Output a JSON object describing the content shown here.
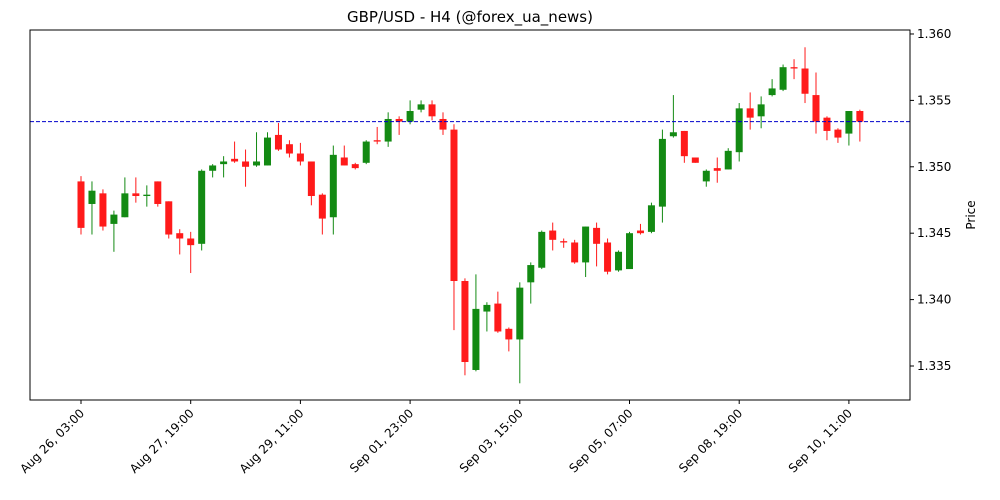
{
  "chart_data": {
    "type": "candlestick",
    "title": "GBP/USD - H4 (@forex_ua_news)",
    "y_label": "Price",
    "categories": [
      "Aug 26, 03:00",
      null,
      null,
      null,
      null,
      null,
      null,
      null,
      null,
      null,
      "Aug 27, 19:00",
      null,
      null,
      null,
      null,
      null,
      null,
      null,
      null,
      null,
      "Aug 29, 11:00",
      null,
      null,
      null,
      null,
      null,
      null,
      null,
      null,
      null,
      "Sep 01, 23:00",
      null,
      null,
      null,
      null,
      null,
      null,
      null,
      null,
      null,
      "Sep 03, 15:00",
      null,
      null,
      null,
      null,
      null,
      null,
      null,
      null,
      null,
      "Sep 05, 07:00",
      null,
      null,
      null,
      null,
      null,
      null,
      null,
      null,
      null,
      "Sep 08, 19:00",
      null,
      null,
      null,
      null,
      null,
      null,
      null,
      null,
      null,
      "Sep 10, 11:00",
      null
    ],
    "open": [
      1.3489,
      1.3472,
      1.348,
      1.3457,
      1.3462,
      1.348,
      1.3478,
      1.3489,
      1.3474,
      1.345,
      1.3446,
      1.3442,
      1.3497,
      1.3502,
      1.3506,
      1.3504,
      1.3501,
      1.3501,
      1.3524,
      1.3517,
      1.351,
      1.3504,
      1.3479,
      1.3462,
      1.3507,
      1.3502,
      1.3503,
      1.352,
      1.3519,
      1.3536,
      1.3534,
      1.3543,
      1.3547,
      1.3536,
      1.3528,
      1.3414,
      1.3347,
      1.3391,
      1.3397,
      1.3378,
      1.337,
      1.3413,
      1.3424,
      1.3452,
      1.3444,
      1.3443,
      1.3428,
      1.3454,
      1.3443,
      1.3422,
      1.3423,
      1.3452,
      1.3451,
      1.347,
      1.3523,
      1.3527,
      1.3507,
      1.3489,
      1.3499,
      1.3498,
      1.3511,
      1.3544,
      1.3538,
      1.3554,
      1.3558,
      1.3575,
      1.3574,
      1.3554,
      1.3537,
      1.3528,
      1.3525,
      1.3542
    ],
    "high": [
      1.3493,
      1.3489,
      1.3483,
      1.3467,
      1.3492,
      1.3492,
      1.3486,
      1.3489,
      1.3474,
      1.3453,
      1.3451,
      1.3498,
      1.3502,
      1.3508,
      1.3519,
      1.3513,
      1.3526,
      1.3526,
      1.3533,
      1.352,
      1.3518,
      1.3504,
      1.348,
      1.3516,
      1.3516,
      1.3503,
      1.352,
      1.353,
      1.3541,
      1.3538,
      1.355,
      1.355,
      1.355,
      1.3541,
      1.3532,
      1.3416,
      1.3419,
      1.3398,
      1.3406,
      1.3379,
      1.3413,
      1.3428,
      1.3452,
      1.3458,
      1.3446,
      1.3445,
      1.3455,
      1.3458,
      1.3446,
      1.3437,
      1.3451,
      1.3457,
      1.3473,
      1.3528,
      1.3554,
      1.3527,
      1.3507,
      1.3498,
      1.3507,
      1.3514,
      1.3548,
      1.3556,
      1.3553,
      1.3566,
      1.3577,
      1.3581,
      1.359,
      1.3571,
      1.3538,
      1.3529,
      1.3542,
      1.3543
    ],
    "low": [
      1.3449,
      1.3449,
      1.3452,
      1.3436,
      1.3462,
      1.3473,
      1.347,
      1.347,
      1.3446,
      1.3434,
      1.342,
      1.3437,
      1.3492,
      1.3492,
      1.3503,
      1.3485,
      1.35,
      1.3501,
      1.3512,
      1.3507,
      1.3501,
      1.3471,
      1.3449,
      1.3449,
      1.3501,
      1.3498,
      1.3502,
      1.3517,
      1.3515,
      1.3524,
      1.3532,
      1.3541,
      1.3535,
      1.3524,
      1.3377,
      1.3343,
      1.3346,
      1.3376,
      1.3375,
      1.3361,
      1.3337,
      1.3397,
      1.3423,
      1.3437,
      1.3439,
      1.3427,
      1.3417,
      1.3425,
      1.3419,
      1.3421,
      1.3423,
      1.3449,
      1.345,
      1.3458,
      1.3522,
      1.3503,
      1.3503,
      1.3485,
      1.3488,
      1.3498,
      1.3504,
      1.3528,
      1.3529,
      1.3553,
      1.3557,
      1.3566,
      1.3548,
      1.3525,
      1.352,
      1.3518,
      1.3516,
      1.3519
    ],
    "close": [
      1.3454,
      1.3482,
      1.3455,
      1.3464,
      1.348,
      1.3478,
      1.3479,
      1.3472,
      1.3449,
      1.3446,
      1.3441,
      1.3497,
      1.3501,
      1.3504,
      1.3504,
      1.35,
      1.3504,
      1.3522,
      1.3513,
      1.351,
      1.3504,
      1.3478,
      1.3461,
      1.3509,
      1.3501,
      1.3499,
      1.3519,
      1.3519,
      1.3536,
      1.3534,
      1.3542,
      1.3547,
      1.3538,
      1.3528,
      1.3414,
      1.3353,
      1.3393,
      1.3396,
      1.3376,
      1.337,
      1.3409,
      1.3426,
      1.3451,
      1.3445,
      1.3443,
      1.3428,
      1.3455,
      1.3442,
      1.3421,
      1.3436,
      1.345,
      1.345,
      1.3471,
      1.3521,
      1.3526,
      1.3508,
      1.3503,
      1.3497,
      1.3497,
      1.3512,
      1.3544,
      1.3537,
      1.3547,
      1.3559,
      1.3575,
      1.3574,
      1.3555,
      1.3534,
      1.3527,
      1.3522,
      1.3542,
      1.3534
    ],
    "up_color": "#138a13",
    "down_color": "#ff1a1a",
    "ylim": [
      1.33244,
      1.3603
    ],
    "yticks": [
      1.335,
      {
        "value": 1.34,
        "label": "1.340"
      },
      1.345,
      {
        "value": 1.35,
        "label": "1.350"
      },
      1.355,
      {
        "value": 1.36,
        "label": "1.360"
      }
    ],
    "hline": {
      "value": 1.3534,
      "color": "#0000cc"
    }
  }
}
